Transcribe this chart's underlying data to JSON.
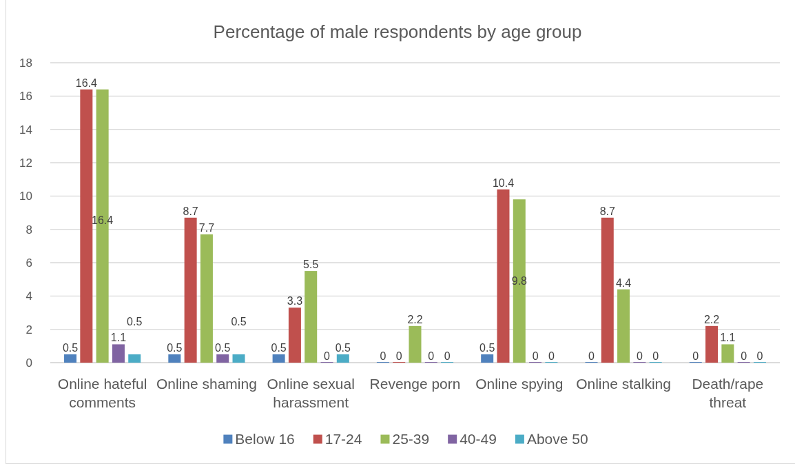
{
  "chart_data": {
    "type": "bar",
    "title": "Percentage of male respondents by age group",
    "categories": [
      "Online hateful comments",
      "Online shaming",
      "Online sexual harassment",
      "Revenge porn",
      "Online spying",
      "Online stalking",
      "Death/rape threat"
    ],
    "series": [
      {
        "name": "Below 16",
        "color": "#4f81bd",
        "values": [
          0.5,
          0.5,
          0.5,
          0,
          0.5,
          0,
          0
        ]
      },
      {
        "name": "17-24",
        "color": "#c0504d",
        "values": [
          16.4,
          8.7,
          3.3,
          0,
          10.4,
          8.7,
          2.2
        ]
      },
      {
        "name": "25-39",
        "color": "#9bbb59",
        "values": [
          16.4,
          7.7,
          5.5,
          2.2,
          9.8,
          4.4,
          1.1
        ]
      },
      {
        "name": "40-49",
        "color": "#8064a2",
        "values": [
          1.1,
          0.5,
          0,
          0,
          0,
          0,
          0
        ]
      },
      {
        "name": "Above 50",
        "color": "#4bacc6",
        "values": [
          0.5,
          0.5,
          0.5,
          0,
          0,
          0,
          0
        ]
      }
    ],
    "ylim": [
      0,
      18
    ],
    "yticks": [
      0,
      2,
      4,
      6,
      8,
      10,
      12,
      14,
      16,
      18
    ],
    "grid": "y",
    "legend": "bottom",
    "data_labels": true
  }
}
